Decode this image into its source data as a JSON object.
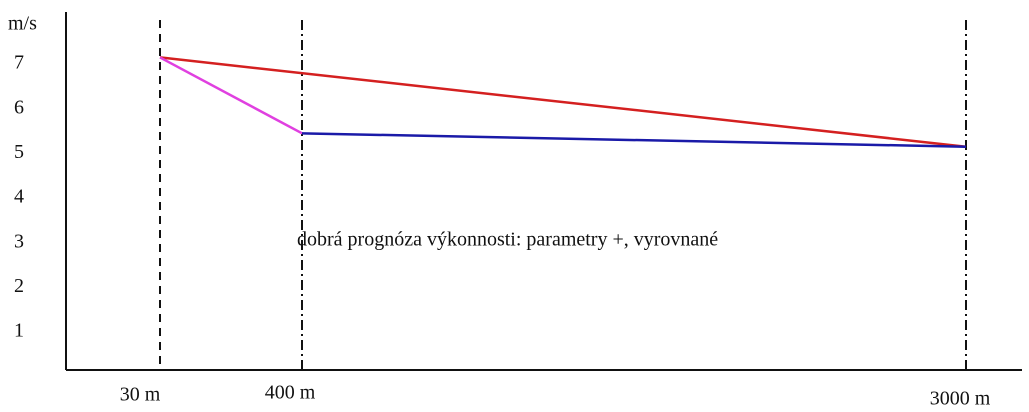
{
  "chart_data": {
    "type": "line",
    "y_label": "m/s",
    "categories": [
      "30 m",
      "400 m",
      "3000 m"
    ],
    "ylim": [
      0,
      8.1
    ],
    "yticks": [
      1,
      2,
      3,
      4,
      5,
      6,
      7
    ],
    "annotation": "dobrá prognóza výkonnosti: parametry +, vyrovnané",
    "series": [
      {
        "color": "#d42020",
        "x": [
          "30 m",
          "3000 m"
        ],
        "values": [
          7.15,
          5.15
        ]
      },
      {
        "color": "#e040e0",
        "x": [
          "30 m",
          "400 m"
        ],
        "values": [
          7.15,
          5.45
        ]
      },
      {
        "color": "#1a1aa8",
        "x": [
          "400 m",
          "3000 m"
        ],
        "values": [
          5.45,
          5.15
        ]
      }
    ]
  }
}
